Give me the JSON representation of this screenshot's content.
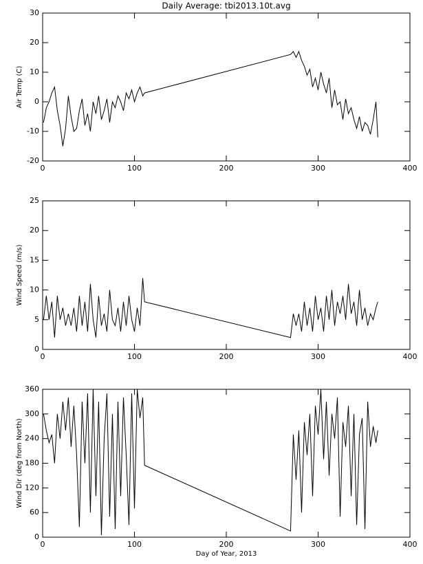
{
  "chart_data": [
    {
      "type": "line",
      "title": "Daily Average: tbi2013.10t.avg",
      "ylabel": "Air Temp (C)",
      "color": "#000000",
      "x": [
        1,
        4,
        7,
        10,
        13,
        16,
        19,
        22,
        25,
        28,
        31,
        34,
        37,
        40,
        43,
        46,
        49,
        52,
        55,
        58,
        61,
        64,
        67,
        70,
        73,
        76,
        79,
        82,
        85,
        88,
        91,
        94,
        97,
        100,
        103,
        106,
        109,
        111,
        270,
        273,
        276,
        279,
        282,
        285,
        288,
        291,
        294,
        297,
        300,
        303,
        306,
        309,
        312,
        315,
        318,
        321,
        324,
        327,
        330,
        333,
        336,
        339,
        342,
        345,
        348,
        351,
        354,
        357,
        360,
        363,
        365
      ],
      "values": [
        -7,
        -2,
        0,
        3,
        5,
        -3,
        -8,
        -15,
        -9,
        2,
        -5,
        -10,
        -9,
        -3,
        1,
        -8,
        -4,
        -10,
        0,
        -4,
        2,
        -6,
        -3,
        1,
        -7,
        0,
        -2,
        2,
        0,
        -3,
        3,
        1,
        4,
        0,
        3,
        5,
        2,
        3,
        16,
        17,
        15,
        17,
        14,
        12,
        9,
        11,
        5,
        8,
        4,
        10,
        6,
        3,
        8,
        -2,
        4,
        -1,
        0,
        -6,
        1,
        -4,
        -2,
        -6,
        -9,
        -5,
        -10,
        -7,
        -8,
        -11,
        -6,
        0,
        -12
      ],
      "xlim": [
        0,
        400
      ],
      "xticks": [
        0,
        100,
        200,
        300,
        400
      ],
      "ylim": [
        -20,
        30
      ],
      "yticks": [
        -20,
        -10,
        0,
        10,
        20,
        30
      ]
    },
    {
      "type": "line",
      "ylabel": "Wind Speed (m/s)",
      "color": "#000000",
      "x": [
        1,
        4,
        7,
        10,
        13,
        16,
        19,
        22,
        25,
        28,
        31,
        34,
        37,
        40,
        43,
        46,
        49,
        52,
        55,
        58,
        61,
        64,
        67,
        70,
        73,
        76,
        79,
        82,
        85,
        88,
        91,
        94,
        97,
        100,
        103,
        106,
        109,
        111,
        270,
        273,
        276,
        279,
        282,
        285,
        288,
        291,
        294,
        297,
        300,
        303,
        306,
        309,
        312,
        315,
        318,
        321,
        324,
        327,
        330,
        333,
        336,
        339,
        342,
        345,
        348,
        351,
        354,
        357,
        360,
        363,
        365
      ],
      "values": [
        5,
        9,
        5,
        8,
        2,
        9,
        5,
        7,
        4,
        6,
        4,
        7,
        3,
        9,
        4,
        8,
        3,
        11,
        5,
        2,
        9,
        4,
        6,
        3,
        10,
        5,
        4,
        7,
        3,
        8,
        4,
        9,
        5,
        3,
        7,
        4,
        12,
        8,
        2,
        6,
        4,
        6,
        3,
        8,
        4,
        7,
        3,
        9,
        5,
        7,
        3,
        9,
        5,
        10,
        4,
        8,
        6,
        9,
        5,
        11,
        6,
        8,
        4,
        10,
        5,
        7,
        4,
        6,
        5,
        7,
        8
      ],
      "xlim": [
        0,
        400
      ],
      "xticks": [
        0,
        100,
        200,
        300,
        400
      ],
      "ylim": [
        0,
        25
      ],
      "yticks": [
        0,
        5,
        10,
        15,
        20,
        25
      ]
    },
    {
      "type": "line",
      "ylabel": "Wind Dir (deg from North)",
      "xlabel": "Day of Year, 2013",
      "color": "#000000",
      "x": [
        1,
        4,
        7,
        10,
        13,
        16,
        19,
        22,
        25,
        28,
        31,
        34,
        37,
        40,
        43,
        46,
        49,
        52,
        55,
        58,
        61,
        64,
        67,
        70,
        73,
        76,
        79,
        82,
        85,
        88,
        91,
        94,
        97,
        100,
        103,
        106,
        109,
        111,
        270,
        273,
        276,
        279,
        282,
        285,
        288,
        291,
        294,
        297,
        300,
        303,
        306,
        309,
        312,
        315,
        318,
        321,
        324,
        327,
        330,
        333,
        336,
        339,
        342,
        345,
        348,
        351,
        354,
        357,
        360,
        363,
        365
      ],
      "values": [
        300,
        260,
        230,
        250,
        180,
        300,
        240,
        330,
        260,
        340,
        220,
        320,
        200,
        25,
        330,
        180,
        350,
        60,
        360,
        100,
        330,
        5,
        240,
        350,
        50,
        300,
        20,
        330,
        100,
        340,
        200,
        30,
        350,
        70,
        360,
        290,
        340,
        175,
        15,
        250,
        140,
        260,
        60,
        280,
        200,
        300,
        100,
        320,
        250,
        360,
        190,
        330,
        150,
        300,
        240,
        340,
        50,
        280,
        220,
        320,
        100,
        300,
        30,
        250,
        290,
        20,
        330,
        220,
        270,
        230,
        260
      ],
      "xlim": [
        0,
        400
      ],
      "xticks": [
        0,
        100,
        200,
        300,
        400
      ],
      "ylim": [
        0,
        360
      ],
      "yticks": [
        0,
        60,
        120,
        180,
        240,
        300,
        360
      ]
    }
  ]
}
